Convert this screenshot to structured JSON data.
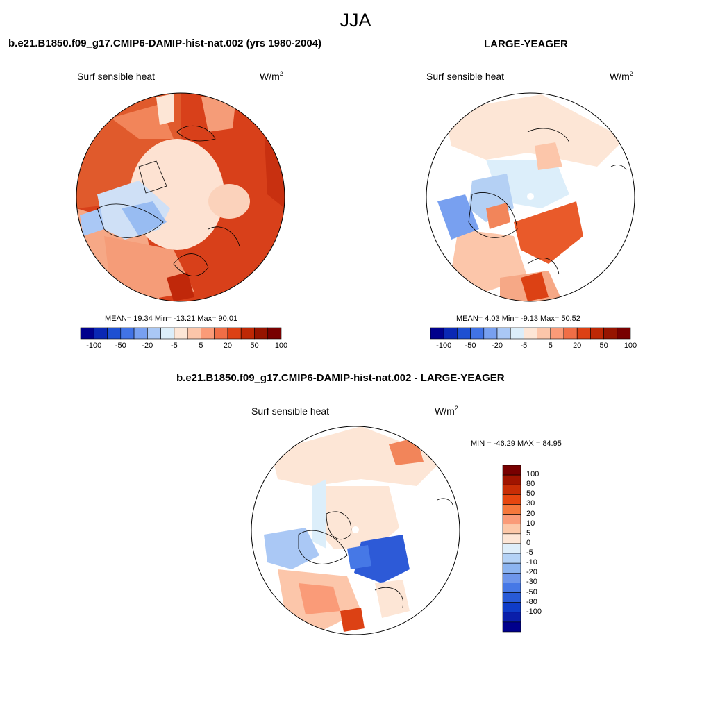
{
  "figure": {
    "season": "JJA",
    "units": "W/m",
    "units_exponent": "2"
  },
  "panels": [
    {
      "id": "model",
      "title": "b.e21.B1850.f09_g17.CMIP6-DAMIP-hist-nat.002 (yrs 1980-2004)",
      "variable": "Surf sensible heat",
      "stats": "MEAN=  19.34  Min= -13.21  Max=  90.01"
    },
    {
      "id": "obs",
      "title": "LARGE-YEAGER",
      "variable": "Surf sensible heat",
      "stats": "MEAN=   4.03  Min=  -9.13  Max=  50.52"
    },
    {
      "id": "diff",
      "title": "b.e21.B1850.f09_g17.CMIP6-DAMIP-hist-nat.002 - LARGE-YEAGER",
      "variable": "Surf sensible heat",
      "stats": "MIN = -46.29 MAX =  84.95"
    }
  ],
  "colorbar_horizontal": {
    "colors": [
      "#00008c",
      "#0a28b4",
      "#1e50d2",
      "#4173e6",
      "#78a0f0",
      "#aac8f5",
      "#dceefa",
      "#fde6d6",
      "#fcc6aa",
      "#fa9b78",
      "#f06e46",
      "#dc4114",
      "#be2805",
      "#961400",
      "#780000"
    ],
    "labels": [
      "-100",
      "-50",
      "-20",
      "-5",
      "5",
      "20",
      "50",
      "100"
    ]
  },
  "colorbar_vertical": {
    "colors": [
      "#780000",
      "#a01400",
      "#c82d05",
      "#e6460f",
      "#f5783c",
      "#fa9b78",
      "#fcc8a8",
      "#fde6d6",
      "#deeefa",
      "#b4d2f6",
      "#8cb4f0",
      "#6e96eb",
      "#4678e6",
      "#285ad7",
      "#0f3cc8",
      "#0a1eaa",
      "#00008c"
    ],
    "labels": [
      "100",
      "80",
      "50",
      "30",
      "20",
      "10",
      "5",
      "0",
      "-5",
      "-10",
      "-20",
      "-30",
      "-50",
      "-80",
      "-100"
    ]
  }
}
